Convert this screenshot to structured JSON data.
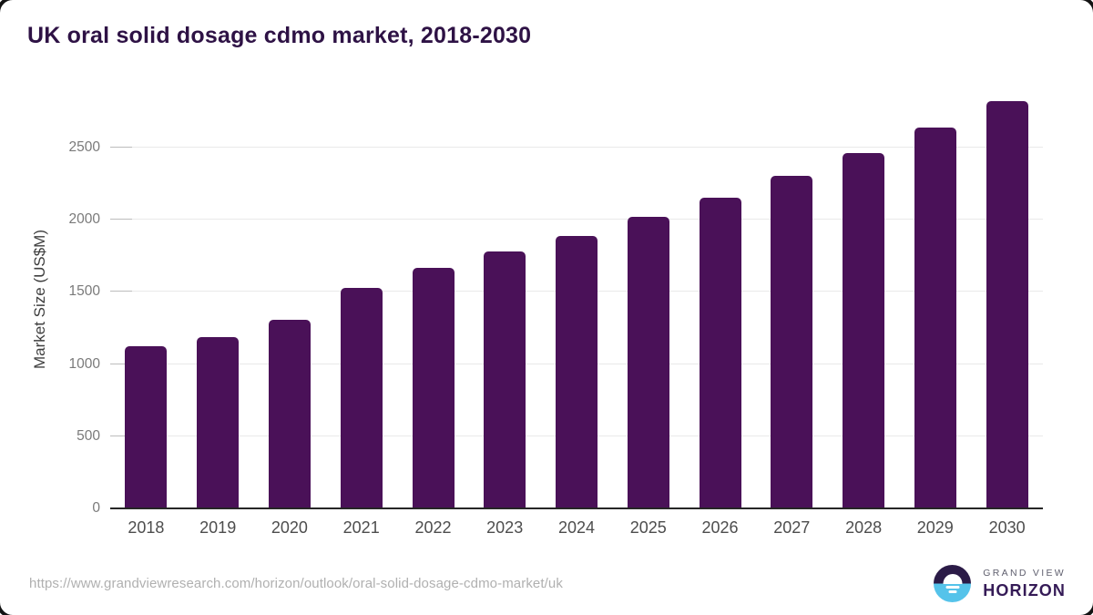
{
  "title": "UK oral solid dosage cdmo market, 2018-2030",
  "chart_data": {
    "type": "bar",
    "title": "UK oral solid dosage cdmo market, 2018-2030",
    "categories": [
      "2018",
      "2019",
      "2020",
      "2021",
      "2022",
      "2023",
      "2024",
      "2025",
      "2026",
      "2027",
      "2028",
      "2029",
      "2030"
    ],
    "values": [
      1125,
      1190,
      1305,
      1525,
      1665,
      1780,
      1890,
      2020,
      2155,
      2305,
      2460,
      2640,
      2820
    ],
    "xlabel": "",
    "ylabel": "Market Size (US$M)",
    "ylim": [
      0,
      2900
    ],
    "y_ticks": [
      0,
      500,
      1000,
      1500,
      2000,
      2500
    ],
    "grid": "horizontal",
    "legend": "none",
    "bar_color": "#4a1158"
  },
  "footer": {
    "source_url": "https://www.grandviewresearch.com/horizon/outlook/oral-solid-dosage-cdmo-market/uk",
    "logo": {
      "line1": "GRAND VIEW",
      "line2": "HORIZON"
    }
  },
  "colors": {
    "bar": "#4a1158",
    "title": "#2e1245",
    "grid": "#e9e9e9",
    "axis": "#262626",
    "tick": "#7a7a7a",
    "xtick": "#4d4d4d",
    "logo_purple": "#2b1b47",
    "logo_blue": "#55c3ea"
  }
}
